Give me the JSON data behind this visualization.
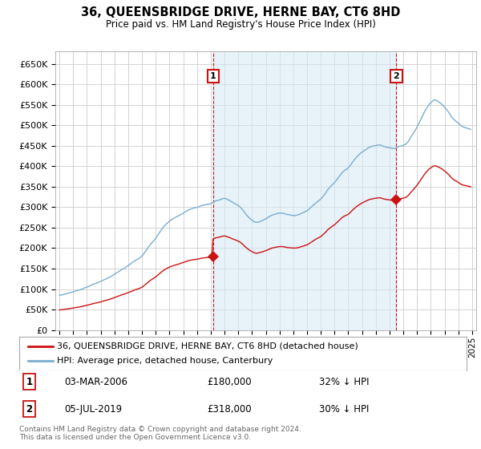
{
  "title": "36, QUEENSBRIDGE DRIVE, HERNE BAY, CT6 8HD",
  "subtitle": "Price paid vs. HM Land Registry's House Price Index (HPI)",
  "ylim": [
    0,
    680000
  ],
  "yticks": [
    0,
    50000,
    100000,
    150000,
    200000,
    250000,
    300000,
    350000,
    400000,
    450000,
    500000,
    550000,
    600000,
    650000
  ],
  "hpi_color": "#7aadcf",
  "hpi_fill_color": "#d8eaf5",
  "price_color": "#cc1111",
  "annotation_color": "#cc1111",
  "grid_color": "#cccccc",
  "bg_color": "#ffffff",
  "plot_bg_color": "#ffffff",
  "legend_label_price": "36, QUEENSBRIDGE DRIVE, HERNE BAY, CT6 8HD (detached house)",
  "legend_label_hpi": "HPI: Average price, detached house, Canterbury",
  "annotation1_date": "03-MAR-2006",
  "annotation1_price": "£180,000",
  "annotation1_hpi": "32% ↓ HPI",
  "annotation2_date": "05-JUL-2019",
  "annotation2_price": "£318,000",
  "annotation2_hpi": "30% ↓ HPI",
  "footer": "Contains HM Land Registry data © Crown copyright and database right 2024.\nThis data is licensed under the Open Government Licence v3.0.",
  "sale1_year": 2006.17,
  "sale1_price": 180000,
  "sale2_year": 2019.5,
  "sale2_price": 318000,
  "xlim_start": 1994.7,
  "xlim_end": 2025.3
}
